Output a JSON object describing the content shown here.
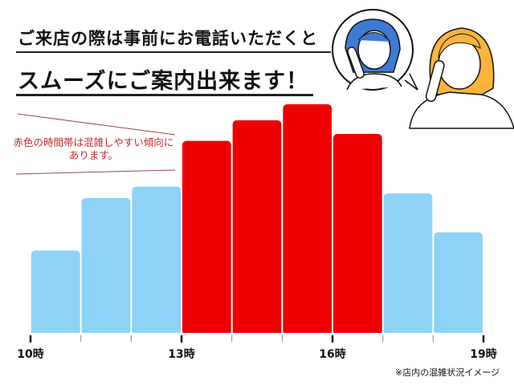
{
  "heading": {
    "line1": "ご来店の際は事前にお電話いただくと",
    "line2": "スムーズにご案内出来ます！"
  },
  "note": "赤色の時間帯は混雑しやすい傾向にあります。",
  "footnote": "※店内の混雑状況イメージ",
  "chart_data": {
    "type": "bar",
    "categories": [
      "10-11",
      "11-12",
      "12-13",
      "13-14",
      "14-15",
      "15-16",
      "16-17",
      "17-18",
      "18-19"
    ],
    "values": [
      36,
      59,
      64,
      84,
      93,
      100,
      87,
      61,
      44
    ],
    "highlight": [
      false,
      false,
      false,
      true,
      true,
      true,
      true,
      false,
      false
    ],
    "tick_labels": [
      {
        "hour": 10,
        "label": "10時"
      },
      {
        "hour": 13,
        "label": "13時"
      },
      {
        "hour": 16,
        "label": "16時"
      },
      {
        "hour": 19,
        "label": "19時"
      }
    ],
    "xlim": [
      10,
      19
    ],
    "ylim": [
      0,
      100
    ],
    "colors": {
      "normal": "#8dd3f7",
      "busy": "#ee0000"
    },
    "grid": false
  }
}
